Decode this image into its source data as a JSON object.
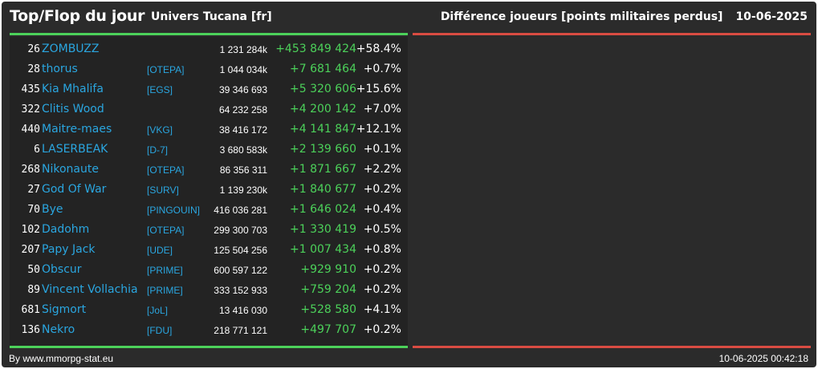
{
  "header": {
    "title": "Top/Flop du jour",
    "universe": "Univers Tucana [fr]",
    "metric": "Différence joueurs [points militaires perdus]",
    "date": "10-06-2025"
  },
  "colors": {
    "background": "#2b2b2b",
    "positive": "#4cd15a",
    "negative": "#d94c42",
    "link": "#2aa6e0"
  },
  "top": [
    {
      "rank": "26",
      "name": "ZOMBUZZ",
      "alliance": "",
      "points": "1 231 284k",
      "diff": "+453 849 424",
      "pct": "+58.4%"
    },
    {
      "rank": "28",
      "name": "thorus",
      "alliance": "[OTEPA]",
      "points": "1 044 034k",
      "diff": "+7 681 464",
      "pct": "+0.7%"
    },
    {
      "rank": "435",
      "name": "Kia Mhalifa",
      "alliance": "[EGS]",
      "points": "39 346 693",
      "diff": "+5 320 606",
      "pct": "+15.6%"
    },
    {
      "rank": "322",
      "name": "Clitis Wood",
      "alliance": "",
      "points": "64 232 258",
      "diff": "+4 200 142",
      "pct": "+7.0%"
    },
    {
      "rank": "440",
      "name": "Maitre-maes",
      "alliance": "[VKG]",
      "points": "38 416 172",
      "diff": "+4 141 847",
      "pct": "+12.1%"
    },
    {
      "rank": "6",
      "name": "LASERBEAK",
      "alliance": "[D-7]",
      "points": "3 680 583k",
      "diff": "+2 139 660",
      "pct": "+0.1%"
    },
    {
      "rank": "268",
      "name": "Nikonaute",
      "alliance": "[OTEPA]",
      "points": "86 356 311",
      "diff": "+1 871 667",
      "pct": "+2.2%"
    },
    {
      "rank": "27",
      "name": "God Of War",
      "alliance": "[SURV]",
      "points": "1 139 230k",
      "diff": "+1 840 677",
      "pct": "+0.2%"
    },
    {
      "rank": "70",
      "name": "Bye",
      "alliance": "[PINGOUIN]",
      "points": "416 036 281",
      "diff": "+1 646 024",
      "pct": "+0.4%"
    },
    {
      "rank": "102",
      "name": "Dadohm",
      "alliance": "[OTEPA]",
      "points": "299 300 703",
      "diff": "+1 330 419",
      "pct": "+0.5%"
    },
    {
      "rank": "207",
      "name": "Papy Jack",
      "alliance": "[UDE]",
      "points": "125 504 256",
      "diff": "+1 007 434",
      "pct": "+0.8%"
    },
    {
      "rank": "50",
      "name": "Obscur",
      "alliance": "[PRIME]",
      "points": "600 597 122",
      "diff": "+929 910",
      "pct": "+0.2%"
    },
    {
      "rank": "89",
      "name": "Vincent Vollachia",
      "alliance": "[PRIME]",
      "points": "333 152 933",
      "diff": "+759 204",
      "pct": "+0.2%"
    },
    {
      "rank": "681",
      "name": "Sigmort",
      "alliance": "[JoL]",
      "points": "13 416 030",
      "diff": "+528 580",
      "pct": "+4.1%"
    },
    {
      "rank": "136",
      "name": "Nekro",
      "alliance": "[FDU]",
      "points": "218 771 121",
      "diff": "+497 707",
      "pct": "+0.2%"
    }
  ],
  "flop": [],
  "footer": {
    "credit": "By www.mmorpg-stat.eu",
    "timestamp": "10-06-2025 00:42:18"
  }
}
